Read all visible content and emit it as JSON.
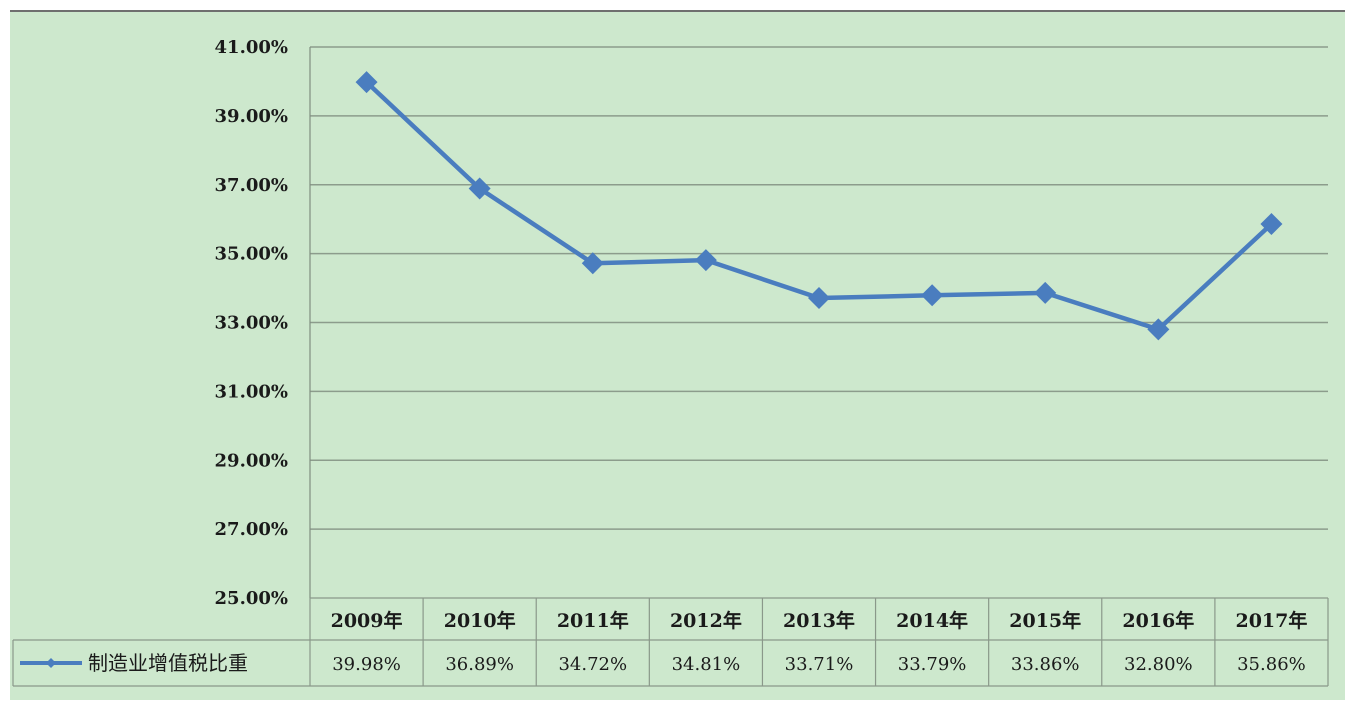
{
  "chart_data": {
    "type": "line",
    "categories": [
      "2009年",
      "2010年",
      "2011年",
      "2012年",
      "2013年",
      "2014年",
      "2015年",
      "2016年",
      "2017年"
    ],
    "series": [
      {
        "name": "制造业增值税比重",
        "values": [
          39.98,
          36.89,
          34.72,
          34.81,
          33.71,
          33.79,
          33.86,
          32.8,
          35.86
        ],
        "labels": [
          "39.98%",
          "36.89%",
          "34.72%",
          "34.81%",
          "33.71%",
          "33.79%",
          "33.86%",
          "32.80%",
          "35.86%"
        ],
        "color": "#4a7dbf"
      }
    ],
    "ylim": [
      25,
      41
    ],
    "yticks": [
      25,
      27,
      29,
      31,
      33,
      35,
      37,
      39,
      41
    ],
    "ytick_labels": [
      "25.00%",
      "27.00%",
      "29.00%",
      "31.00%",
      "33.00%",
      "35.00%",
      "37.00%",
      "39.00%",
      "41.00%"
    ],
    "grid": true,
    "legend": "bottom-left data table",
    "title": "",
    "xlabel": "",
    "ylabel": ""
  },
  "colors": {
    "background": "#cde8cd",
    "series": "#4a7dbf",
    "grid": "#8c9c8c"
  }
}
